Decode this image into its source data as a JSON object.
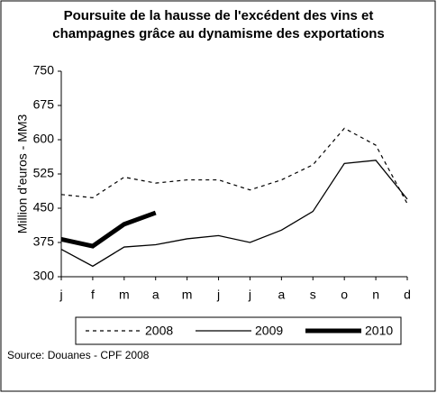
{
  "chart_data": {
    "type": "line",
    "title": "Poursuite de la hausse de l'excédent des vins et champagnes grâce au dynamisme des exportations",
    "ylabel": "Million d'euros - MM3",
    "source": "Source: Douanes - CPF 2008",
    "categories": [
      "j",
      "f",
      "m",
      "a",
      "m",
      "j",
      "j",
      "a",
      "s",
      "o",
      "n",
      "d"
    ],
    "series": [
      {
        "name": "2008",
        "color": "#000000",
        "style": "dashed",
        "values": [
          480,
          473,
          518,
          505,
          512,
          512,
          490,
          512,
          545,
          625,
          588,
          460
        ]
      },
      {
        "name": "2009",
        "color": "#000000",
        "style": "thin",
        "values": [
          360,
          323,
          365,
          370,
          383,
          390,
          375,
          402,
          443,
          548,
          555,
          470
        ]
      },
      {
        "name": "2010",
        "color": "#000000",
        "style": "thick",
        "values": [
          382,
          367,
          415,
          440,
          null,
          null,
          null,
          null,
          null,
          null,
          null,
          null
        ]
      }
    ],
    "ylim": [
      300,
      750
    ],
    "yticks": [
      300,
      375,
      450,
      525,
      600,
      675,
      750
    ],
    "grid": false
  }
}
